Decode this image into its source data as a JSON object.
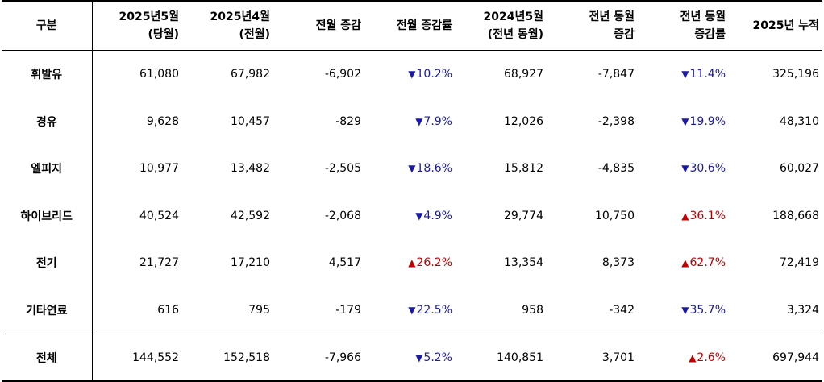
{
  "headers": [
    {
      "line1": "구분",
      "line2": ""
    },
    {
      "line1": "2025년5월",
      "line2": "(당월)"
    },
    {
      "line1": "2025년4월",
      "line2": "(전월)"
    },
    {
      "line1": "전월 증감",
      "line2": ""
    },
    {
      "line1": "전월 증감률",
      "line2": ""
    },
    {
      "line1": "2024년5월",
      "line2": "(전년 동월)"
    },
    {
      "line1": "전년 동월",
      "line2": "증감"
    },
    {
      "line1": "전년 동월",
      "line2": "증감률"
    },
    {
      "line1": "2025년 누적",
      "line2": ""
    }
  ],
  "rows": [
    {
      "category": "휘발유",
      "may2025": "61,080",
      "apr2025": "67,982",
      "mom_change": "-6,902",
      "mom_rate": "10.2%",
      "mom_dir": "down",
      "may2024": "68,927",
      "yoy_change": "-7,847",
      "yoy_rate": "11.4%",
      "yoy_dir": "down",
      "ytd2025": "325,196"
    },
    {
      "category": "경유",
      "may2025": "9,628",
      "apr2025": "10,457",
      "mom_change": "-829",
      "mom_rate": "7.9%",
      "mom_dir": "down",
      "may2024": "12,026",
      "yoy_change": "-2,398",
      "yoy_rate": "19.9%",
      "yoy_dir": "down",
      "ytd2025": "48,310"
    },
    {
      "category": "엘피지",
      "may2025": "10,977",
      "apr2025": "13,482",
      "mom_change": "-2,505",
      "mom_rate": "18.6%",
      "mom_dir": "down",
      "may2024": "15,812",
      "yoy_change": "-4,835",
      "yoy_rate": "30.6%",
      "yoy_dir": "down",
      "ytd2025": "60,027"
    },
    {
      "category": "하이브리드",
      "may2025": "40,524",
      "apr2025": "42,592",
      "mom_change": "-2,068",
      "mom_rate": "4.9%",
      "mom_dir": "down",
      "may2024": "29,774",
      "yoy_change": "10,750",
      "yoy_rate": "36.1%",
      "yoy_dir": "up",
      "ytd2025": "188,668"
    },
    {
      "category": "전기",
      "may2025": "21,727",
      "apr2025": "17,210",
      "mom_change": "4,517",
      "mom_rate": "26.2%",
      "mom_dir": "up",
      "may2024": "13,354",
      "yoy_change": "8,373",
      "yoy_rate": "62.7%",
      "yoy_dir": "up",
      "ytd2025": "72,419"
    },
    {
      "category": "기타연료",
      "may2025": "616",
      "apr2025": "795",
      "mom_change": "-179",
      "mom_rate": "22.5%",
      "mom_dir": "down",
      "may2024": "958",
      "yoy_change": "-342",
      "yoy_rate": "35.7%",
      "yoy_dir": "down",
      "ytd2025": "3,324"
    }
  ],
  "total": {
    "category": "전체",
    "may2025": "144,552",
    "apr2025": "152,518",
    "mom_change": "-7,966",
    "mom_rate": "5.2%",
    "mom_dir": "down",
    "may2024": "140,851",
    "yoy_change": "3,701",
    "yoy_rate": "2.6%",
    "yoy_dir": "up",
    "ytd2025": "697,944"
  },
  "indicators": {
    "down_symbol": "▼",
    "up_symbol": "▲",
    "down_color": "#1a1aa6",
    "up_color": "#c00000",
    "down_icon": "triangle-down-icon",
    "up_icon": "triangle-up-icon"
  }
}
